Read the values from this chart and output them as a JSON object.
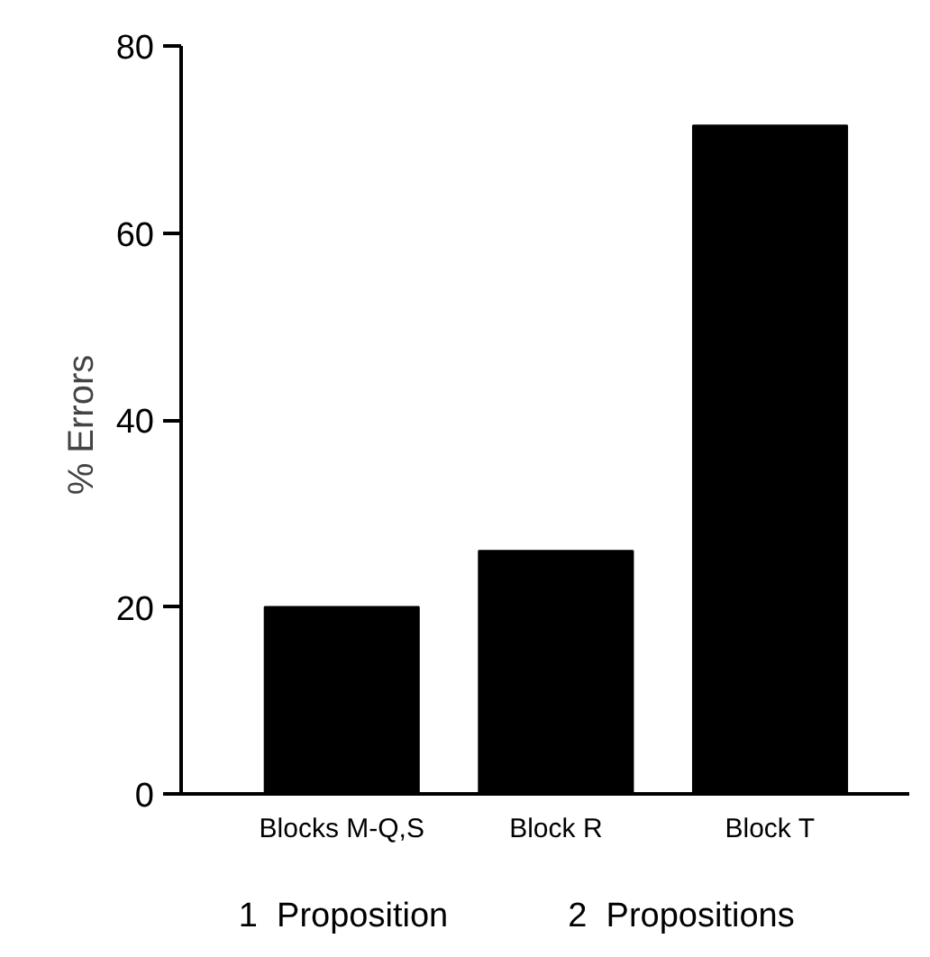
{
  "chart_data": {
    "type": "bar",
    "ylabel": "%  Errors",
    "categories": [
      "Blocks M-Q,S",
      "Block R",
      "Block T"
    ],
    "values": [
      20,
      26,
      71.5
    ],
    "color": "#000000",
    "ylim": [
      0,
      80
    ],
    "yticks": [
      0,
      20,
      40,
      60,
      80
    ],
    "grid": false,
    "annotations": [
      "1  Proposition",
      "2  Propositions"
    ]
  }
}
